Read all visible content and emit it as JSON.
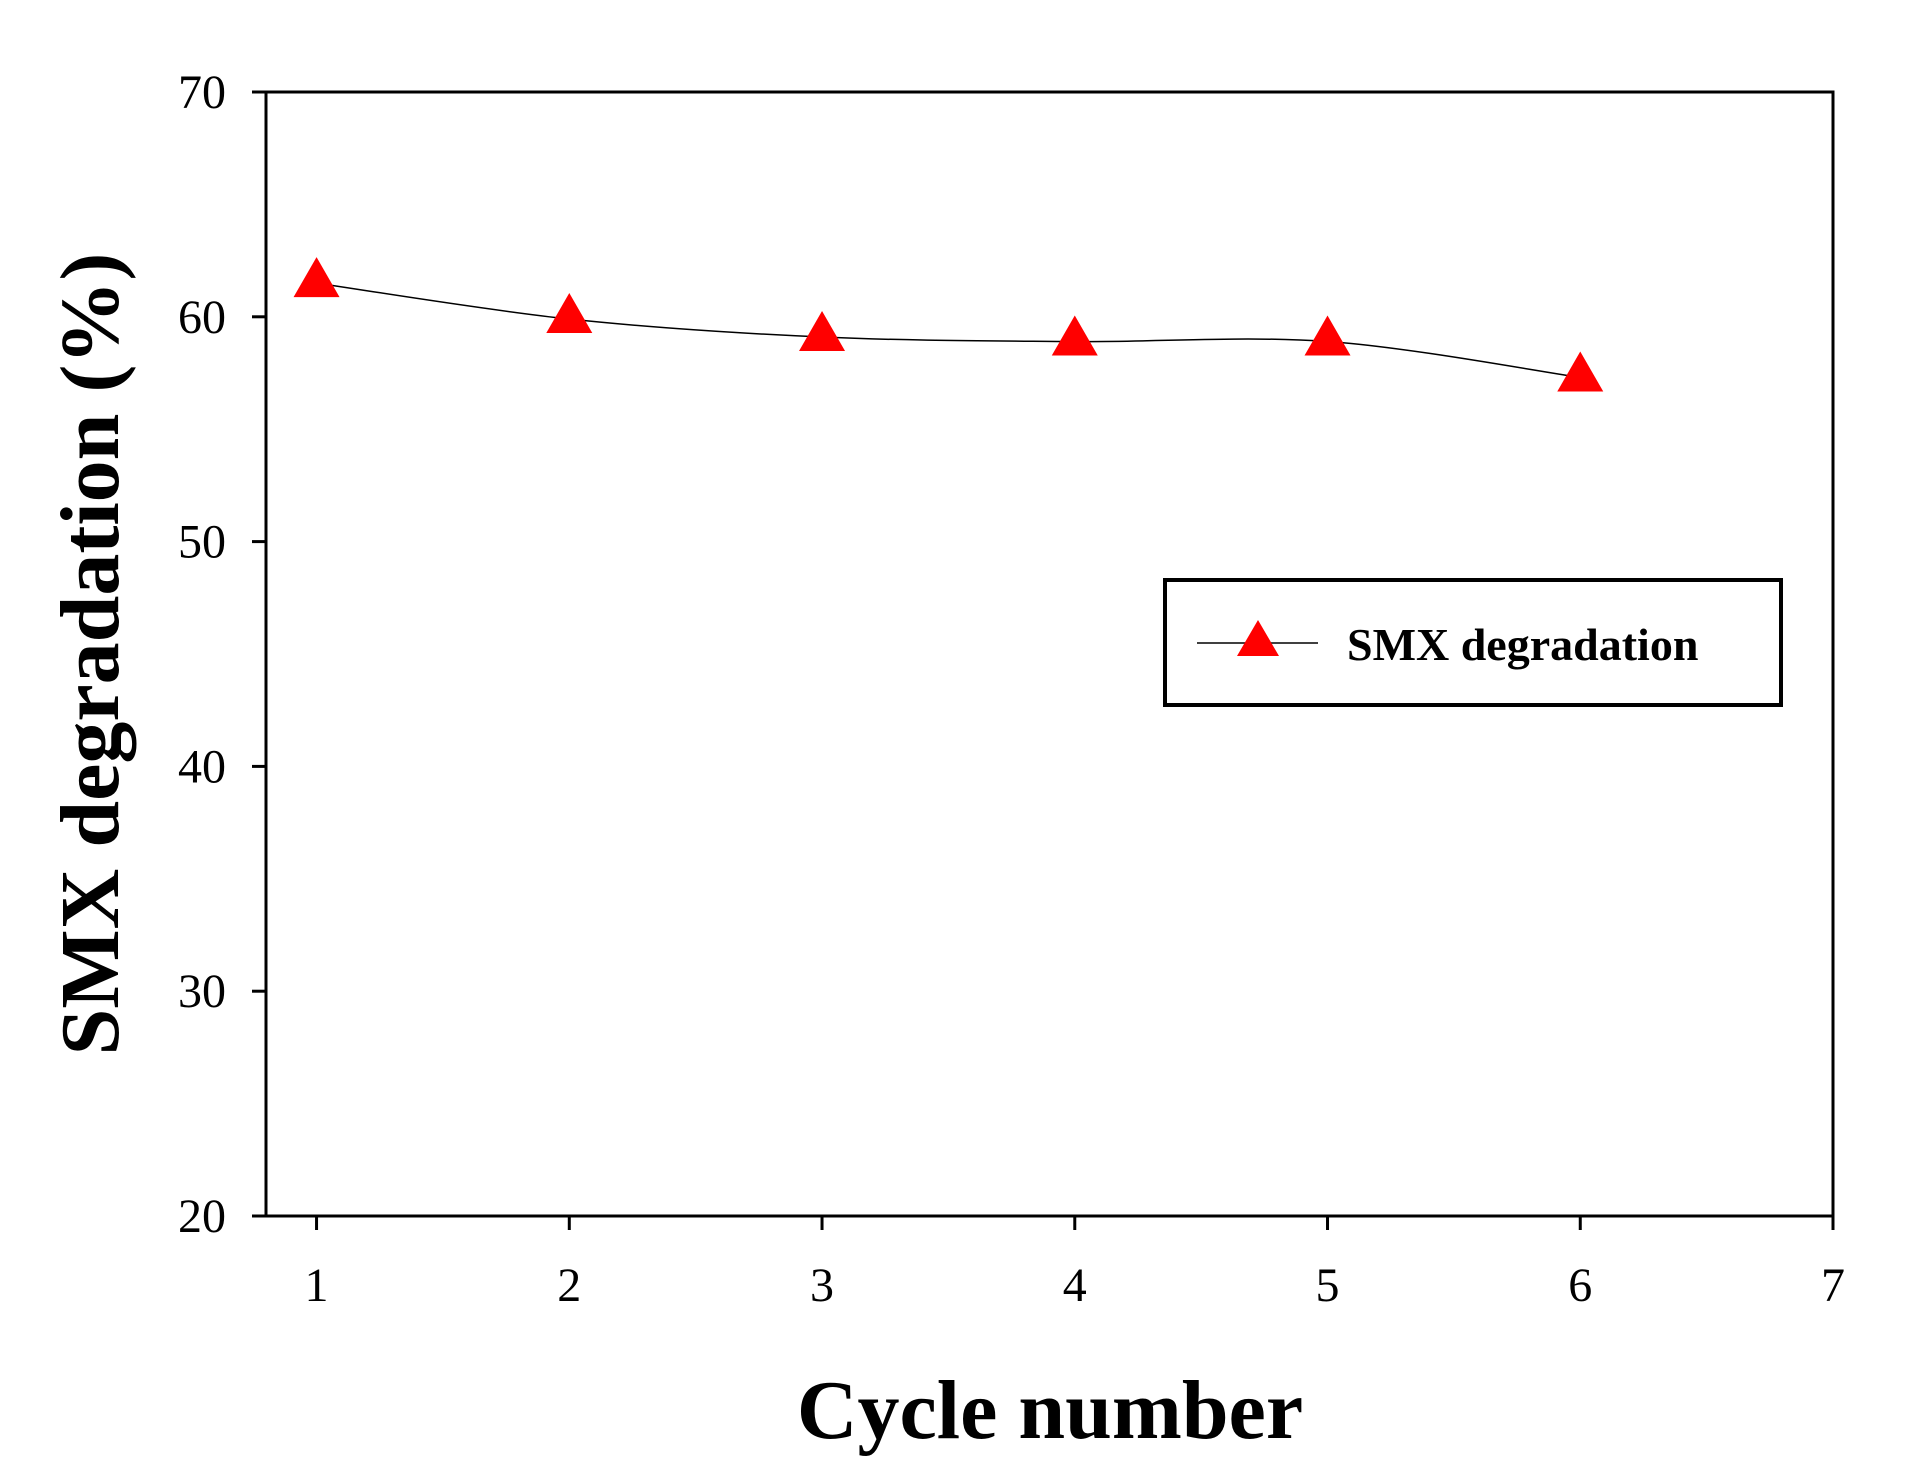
{
  "chart_data": {
    "type": "line",
    "title": "",
    "xlabel": "Cycle number",
    "ylabel": "SMX degradation (%)",
    "xlim": [
      0.8,
      7
    ],
    "ylim": [
      20,
      70
    ],
    "x_ticks": [
      1,
      2,
      3,
      4,
      5,
      6,
      7
    ],
    "y_ticks": [
      20,
      30,
      40,
      50,
      60,
      70
    ],
    "grid": false,
    "legend_position": "center-right",
    "series": [
      {
        "name": "SMX degradation",
        "color": "#ff0000",
        "line_color": "#000000",
        "marker": "triangle-up",
        "x": [
          1,
          2,
          3,
          4,
          5,
          6
        ],
        "values": [
          61.5,
          59.9,
          59.1,
          58.9,
          58.9,
          57.3
        ]
      }
    ]
  }
}
